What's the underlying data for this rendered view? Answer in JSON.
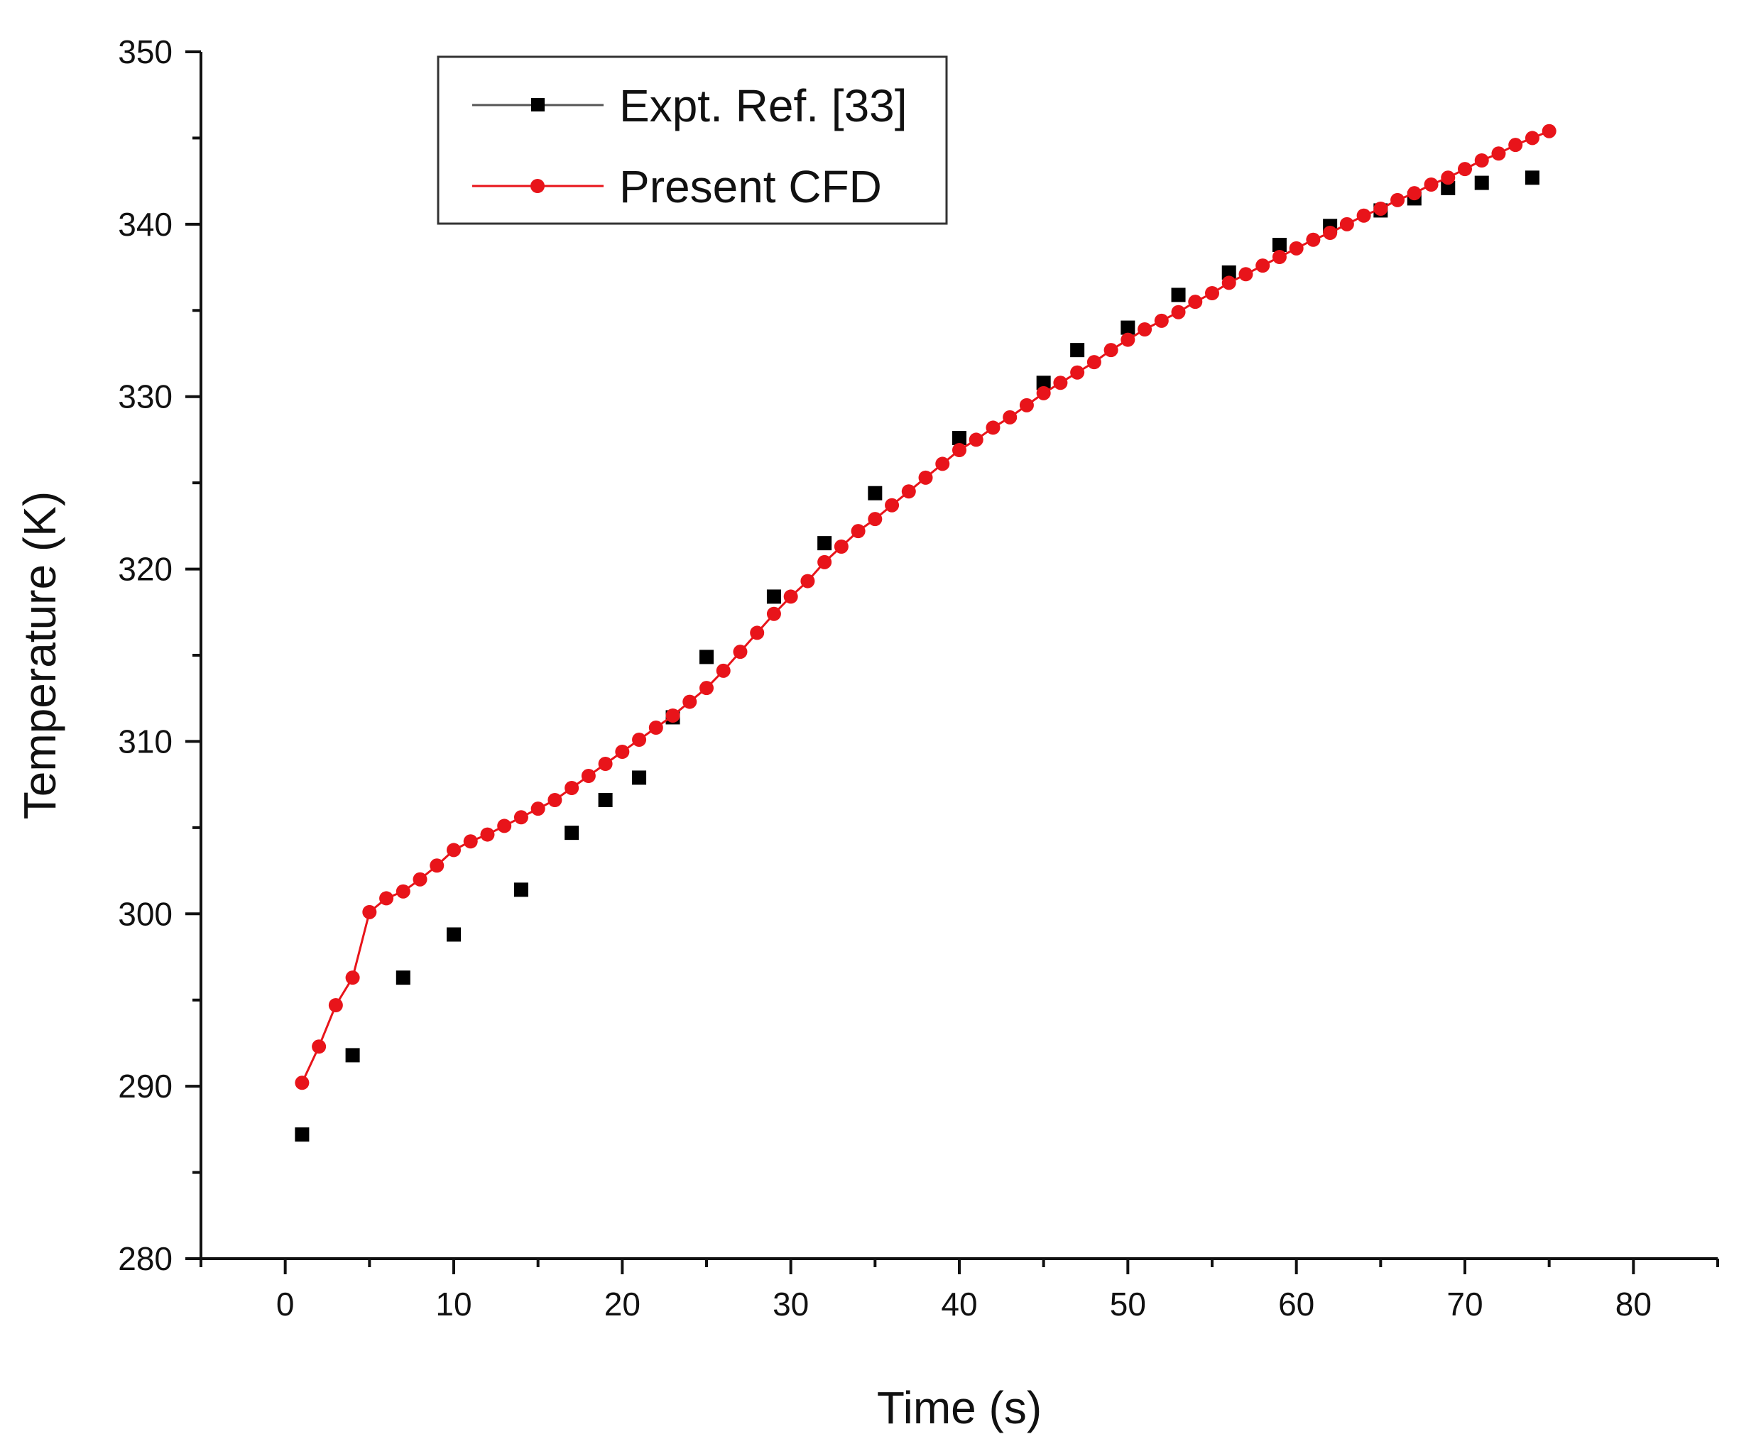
{
  "chart_data": {
    "type": "line",
    "title": "",
    "xlabel": "Time (s)",
    "ylabel": "Temperature (K)",
    "xlim": [
      -5,
      85
    ],
    "ylim": [
      280,
      350
    ],
    "xticks": [
      0,
      10,
      20,
      30,
      40,
      50,
      60,
      70,
      80
    ],
    "yticks": [
      280,
      290,
      300,
      310,
      320,
      330,
      340,
      350
    ],
    "grid": false,
    "legend_position": "top-left",
    "series": [
      {
        "name": "Expt. Ref. [33]",
        "color": "#000000",
        "marker": "square",
        "line": false,
        "x": [
          1,
          4,
          7,
          10,
          14,
          17,
          19,
          21,
          23,
          25,
          29,
          32,
          35,
          40,
          45,
          47,
          50,
          53,
          56,
          59,
          62,
          65,
          67,
          69,
          71,
          74
        ],
        "y": [
          287.2,
          291.8,
          296.3,
          298.8,
          301.4,
          304.7,
          306.6,
          307.9,
          311.4,
          314.9,
          318.4,
          321.5,
          324.4,
          327.6,
          330.8,
          332.7,
          334,
          335.9,
          337.2,
          338.8,
          339.9,
          340.8,
          341.5,
          342.1,
          342.4,
          342.7
        ]
      },
      {
        "name": "Present CFD",
        "color": "#e8141a",
        "marker": "circle",
        "line": true,
        "x": [
          1,
          2,
          3,
          4,
          5,
          6,
          7,
          8,
          9,
          10,
          11,
          12,
          13,
          14,
          15,
          16,
          17,
          18,
          19,
          20,
          21,
          22,
          23,
          24,
          25,
          26,
          27,
          28,
          29,
          30,
          31,
          32,
          33,
          34,
          35,
          36,
          37,
          38,
          39,
          40,
          41,
          42,
          43,
          44,
          45,
          46,
          47,
          48,
          49,
          50,
          51,
          52,
          53,
          54,
          55,
          56,
          57,
          58,
          59,
          60,
          61,
          62,
          63,
          64,
          65,
          66,
          67,
          68,
          69,
          70,
          71,
          72,
          73,
          74,
          75
        ],
        "y": [
          290.2,
          292.3,
          294.7,
          296.3,
          300.1,
          300.9,
          301.3,
          302,
          302.8,
          303.7,
          304.2,
          304.6,
          305.1,
          305.6,
          306.1,
          306.6,
          307.3,
          308,
          308.7,
          309.4,
          310.1,
          310.8,
          311.5,
          312.3,
          313.1,
          314.1,
          315.2,
          316.3,
          317.4,
          318.4,
          319.3,
          320.4,
          321.3,
          322.2,
          322.9,
          323.7,
          324.5,
          325.3,
          326.1,
          326.9,
          327.5,
          328.2,
          328.8,
          329.5,
          330.2,
          330.8,
          331.4,
          332,
          332.7,
          333.3,
          333.9,
          334.4,
          334.9,
          335.5,
          336,
          336.6,
          337.1,
          337.6,
          338.1,
          338.6,
          339.1,
          339.5,
          340,
          340.5,
          340.9,
          341.4,
          341.8,
          342.3,
          342.7,
          343.2,
          343.7,
          344.1,
          344.6,
          345,
          345.4
        ]
      }
    ]
  }
}
